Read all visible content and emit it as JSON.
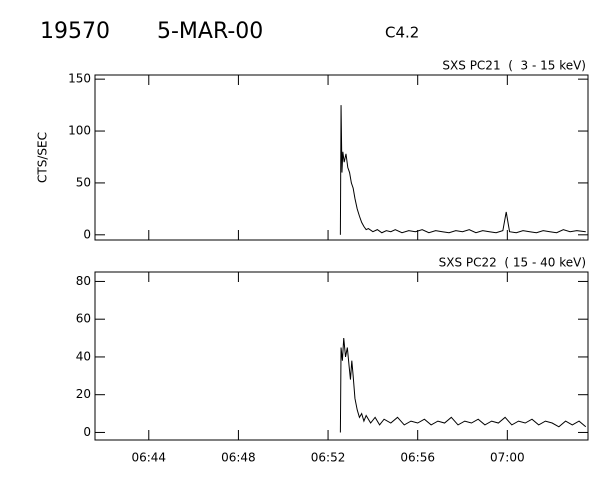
{
  "header": {
    "id": "19570",
    "date": "5-MAR-00",
    "class": "C4.2"
  },
  "chart_data": [
    {
      "type": "line",
      "title": "SXS PC21  (  3 - 15 keV)",
      "ylabel": "CTS/SEC",
      "color": "#000000",
      "xlim": [
        401.6,
        423.6
      ],
      "ylim": [
        -5,
        154
      ],
      "yticks": [
        0,
        50,
        100,
        150
      ],
      "x": [
        412.55,
        412.58,
        412.62,
        412.66,
        412.72,
        412.8,
        412.88,
        412.96,
        413.04,
        413.12,
        413.2,
        413.3,
        413.4,
        413.5,
        413.6,
        413.7,
        413.8,
        414.0,
        414.2,
        414.4,
        414.6,
        414.8,
        415.0,
        415.3,
        415.6,
        415.9,
        416.2,
        416.5,
        416.8,
        417.1,
        417.4,
        417.7,
        418.0,
        418.3,
        418.6,
        418.9,
        419.2,
        419.5,
        419.8,
        419.95,
        420.1,
        420.4,
        420.7,
        421.0,
        421.3,
        421.6,
        421.9,
        422.2,
        422.5,
        422.8,
        423.1,
        423.5
      ],
      "values": [
        0,
        125,
        60,
        80,
        70,
        78,
        65,
        60,
        50,
        45,
        35,
        25,
        18,
        12,
        8,
        5,
        6,
        3,
        5,
        2,
        4,
        3,
        5,
        2,
        4,
        3,
        5,
        2,
        4,
        3,
        2,
        4,
        3,
        5,
        2,
        4,
        3,
        2,
        4,
        22,
        3,
        2,
        4,
        3,
        2,
        4,
        3,
        2,
        5,
        3,
        4,
        3
      ]
    },
    {
      "type": "line",
      "title": "SXS PC22  ( 15 - 40 keV)",
      "color": "#000000",
      "xlim": [
        401.6,
        423.6
      ],
      "ylim": [
        -4,
        85
      ],
      "yticks": [
        0,
        20,
        40,
        60,
        80
      ],
      "xticks": [
        {
          "value": 404,
          "label": "06:44"
        },
        {
          "value": 408,
          "label": "06:48"
        },
        {
          "value": 412,
          "label": "06:52"
        },
        {
          "value": 416,
          "label": "06:56"
        },
        {
          "value": 420,
          "label": "07:00"
        }
      ],
      "x": [
        412.55,
        412.58,
        412.64,
        412.7,
        412.78,
        412.86,
        412.94,
        413.0,
        413.06,
        413.12,
        413.2,
        413.3,
        413.4,
        413.5,
        413.6,
        413.7,
        413.9,
        414.1,
        414.3,
        414.5,
        414.8,
        415.1,
        415.4,
        415.7,
        416.0,
        416.3,
        416.6,
        416.9,
        417.2,
        417.5,
        417.8,
        418.1,
        418.4,
        418.7,
        419.0,
        419.3,
        419.6,
        419.9,
        420.2,
        420.5,
        420.8,
        421.1,
        421.4,
        421.7,
        422.0,
        422.3,
        422.6,
        422.9,
        423.2,
        423.5
      ],
      "values": [
        0,
        45,
        38,
        50,
        40,
        45,
        35,
        28,
        38,
        30,
        18,
        12,
        8,
        10,
        6,
        9,
        5,
        8,
        4,
        7,
        5,
        8,
        4,
        6,
        5,
        7,
        4,
        6,
        5,
        8,
        4,
        6,
        5,
        7,
        4,
        6,
        5,
        8,
        4,
        6,
        5,
        7,
        4,
        6,
        5,
        3,
        6,
        4,
        6,
        3
      ]
    }
  ]
}
